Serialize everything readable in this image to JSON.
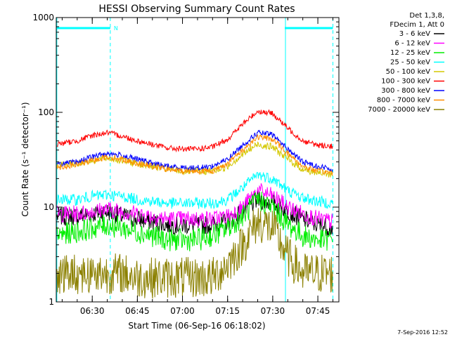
{
  "chart_data": {
    "type": "line",
    "title": "HESSI Observing Summary Count Rates",
    "xlabel": "Start Time (06-Sep-16 06:18:02)",
    "ylabel": "Count Rate (s⁻¹ detector⁻¹)",
    "yscale": "log",
    "ylim": [
      1,
      1000
    ],
    "xlim": [
      "06:18:02",
      "07:52:00"
    ],
    "x_ticks": [
      "06:30",
      "06:45",
      "07:00",
      "07:15",
      "07:30",
      "07:45"
    ],
    "y_ticks": [
      "1",
      "10",
      "100",
      "1000"
    ],
    "legend_position": "right-outside",
    "legend_header": [
      "Det 1,3,8,",
      "FDecim 1, Att 0"
    ],
    "x": [
      "06:18",
      "06:25",
      "06:30",
      "06:35",
      "06:40",
      "06:45",
      "06:50",
      "06:55",
      "07:00",
      "07:05",
      "07:10",
      "07:15",
      "07:20",
      "07:25",
      "07:30",
      "07:35",
      "07:40",
      "07:45",
      "07:50"
    ],
    "series": [
      {
        "name": "3 - 6 keV",
        "color": "#000000",
        "values": [
          8,
          8,
          8.5,
          9,
          8,
          7.5,
          7,
          6.5,
          6.5,
          6.5,
          6.5,
          7,
          9,
          12,
          11,
          9,
          7.5,
          6.5,
          6
        ]
      },
      {
        "name": "6 - 12 keV",
        "color": "#ff00ff",
        "values": [
          8.5,
          8.5,
          9,
          9.5,
          9,
          8.5,
          8,
          7.5,
          7.5,
          7.5,
          7.5,
          8,
          10,
          15,
          13,
          10,
          8.5,
          7.5,
          7
        ]
      },
      {
        "name": "12 - 25 keV",
        "color": "#00ee00",
        "values": [
          5,
          5.5,
          6,
          6.5,
          6,
          5.5,
          5,
          4.5,
          4.5,
          4.5,
          5,
          6,
          8,
          12,
          10,
          6.5,
          5,
          4.5,
          4.5
        ]
      },
      {
        "name": "25 - 50 keV",
        "color": "#00ffff",
        "values": [
          12,
          12,
          13,
          13.5,
          13,
          12,
          11.5,
          11,
          11,
          11,
          11,
          12,
          16,
          22,
          20,
          15,
          12.5,
          11.5,
          11
        ]
      },
      {
        "name": "50 - 100 keV",
        "color": "#d4c800",
        "values": [
          28,
          29,
          31,
          33,
          31,
          29,
          27,
          25,
          24,
          24,
          24,
          27,
          36,
          46,
          43,
          32,
          25,
          23,
          22
        ]
      },
      {
        "name": "100 - 300 keV",
        "color": "#ff0000",
        "values": [
          46,
          50,
          57,
          61,
          56,
          50,
          46,
          42,
          41,
          41,
          43,
          52,
          75,
          103,
          97,
          68,
          50,
          45,
          44
        ]
      },
      {
        "name": "300 - 800 keV",
        "color": "#0000ff",
        "values": [
          28,
          30,
          34,
          37,
          35,
          32,
          29,
          27,
          26,
          26,
          27,
          32,
          45,
          61,
          58,
          41,
          30,
          27,
          25
        ]
      },
      {
        "name": "800 - 7000 keV",
        "color": "#ff8c00",
        "values": [
          26,
          28,
          31,
          34,
          32,
          29,
          27,
          25,
          24,
          24,
          24,
          29,
          40,
          55,
          52,
          37,
          27,
          24,
          23
        ]
      },
      {
        "name": "7000 - 20000 keV",
        "color": "#8b8000",
        "values": [
          2,
          2,
          2,
          2,
          2,
          1.8,
          1.8,
          1.8,
          1.8,
          1.8,
          1.8,
          2.5,
          4,
          7,
          6,
          3,
          2,
          2,
          2
        ]
      }
    ],
    "annotations": [
      {
        "text": "N",
        "color": "#00ffff"
      }
    ],
    "night_intervals": [
      [
        "06:18",
        "06:36"
      ],
      [
        "07:34",
        "07:50"
      ]
    ],
    "timestamp": "7-Sep-2016 12:52"
  }
}
